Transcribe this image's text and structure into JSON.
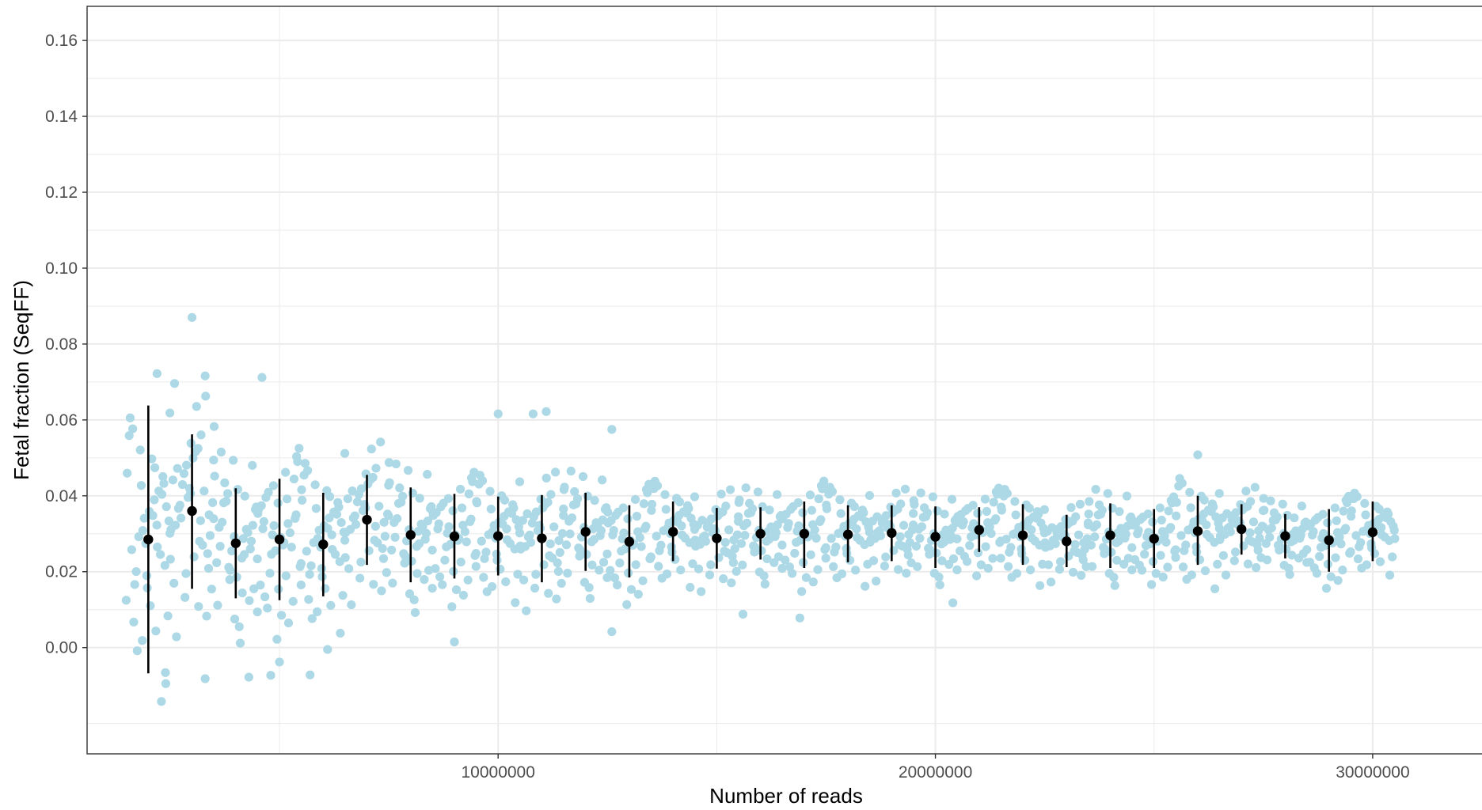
{
  "chart_data": {
    "type": "scatter",
    "title": "",
    "xlabel": "Number of reads",
    "ylabel": "Fetal fraction (SeqFF)",
    "xlim": [
      600000,
      32500000
    ],
    "ylim": [
      -0.028,
      0.169
    ],
    "x_ticks": [
      10000000,
      20000000,
      30000000
    ],
    "x_tick_labels": [
      "10000000",
      "20000000",
      "30000000"
    ],
    "x_minor_ticks": [
      5000000,
      15000000,
      25000000
    ],
    "y_ticks": [
      0.0,
      0.02,
      0.04,
      0.06,
      0.08,
      0.1,
      0.12,
      0.14,
      0.16
    ],
    "y_tick_labels": [
      "0.00",
      "0.02",
      "0.04",
      "0.06",
      "0.08",
      "0.10",
      "0.12",
      "0.14",
      "0.16"
    ],
    "y_minor_ticks": [
      -0.02,
      0.01,
      0.03,
      0.05,
      0.07,
      0.09,
      0.11,
      0.13,
      0.15
    ],
    "grid": true,
    "legend": "none",
    "colors": {
      "points": "#add8e6",
      "summary": "#000000",
      "grid": "#ebebeb",
      "panel_border": "#333333"
    },
    "summary": {
      "x": [
        2000000,
        3000000,
        4000000,
        5000000,
        6000000,
        7000000,
        8000000,
        9000000,
        10000000,
        11000000,
        12000000,
        13000000,
        14000000,
        15000000,
        16000000,
        17000000,
        18000000,
        19000000,
        20000000,
        21000000,
        22000000,
        23000000,
        24000000,
        25000000,
        26000000,
        27000000,
        28000000,
        29000000,
        30000000
      ],
      "mean": [
        0.0285,
        0.036,
        0.0275,
        0.0285,
        0.0272,
        0.0337,
        0.0297,
        0.0293,
        0.0294,
        0.0288,
        0.0305,
        0.0279,
        0.0305,
        0.0288,
        0.03,
        0.03,
        0.0298,
        0.0302,
        0.0292,
        0.031,
        0.0296,
        0.028,
        0.0296,
        0.0287,
        0.0307,
        0.0312,
        0.0294,
        0.0283,
        0.0304
      ],
      "lower": [
        -0.0068,
        0.0155,
        0.013,
        0.0125,
        0.0135,
        0.0218,
        0.0172,
        0.0182,
        0.019,
        0.0172,
        0.0202,
        0.0185,
        0.0228,
        0.0208,
        0.0232,
        0.021,
        0.0225,
        0.0228,
        0.021,
        0.0252,
        0.0218,
        0.0212,
        0.021,
        0.021,
        0.0218,
        0.0245,
        0.0235,
        0.02,
        0.0228
      ],
      "upper": [
        0.0638,
        0.0562,
        0.042,
        0.0445,
        0.0408,
        0.0455,
        0.0422,
        0.0405,
        0.0398,
        0.0402,
        0.0408,
        0.0375,
        0.0385,
        0.0368,
        0.037,
        0.0385,
        0.0375,
        0.0375,
        0.0372,
        0.037,
        0.0378,
        0.035,
        0.038,
        0.0365,
        0.04,
        0.0378,
        0.0352,
        0.0365,
        0.0385
      ]
    },
    "scatter": {
      "x_offsets": [
        -0.38,
        0.31,
        -0.22,
        0.12,
        -0.05,
        0.41,
        -0.33,
        0.27,
        -0.14,
        0.04,
        0.36,
        -0.27,
        0.18,
        -0.42,
        0.09,
        -0.11,
        0.24,
        -0.36,
        0.15,
        -0.02,
        0.33,
        -0.19,
        0.07,
        0.44,
        -0.31,
        0.21,
        -0.08,
        0.39,
        -0.24,
        0.13,
        -0.44,
        0.02,
        0.29,
        -0.16,
        0.34,
        -0.03,
        0.17,
        -0.29,
        0.43,
        -0.12
      ],
      "z": [
        1.52,
        -1.12,
        0.35,
        0.82,
        -0.47,
        0.13,
        -1.63,
        1.05,
        -0.22,
        0.58,
        -0.89,
        1.78,
        -0.06,
        0.41,
        -1.34,
        0.27,
        0.92,
        -0.71,
        -0.15,
        1.31,
        -0.38,
        0.66,
        -1.95,
        0.04,
        0.79,
        -0.53,
        1.18,
        -0.97,
        0.21,
        -0.29,
        0.48,
        -1.21,
        1.62,
        -0.66,
        0.09,
        0.71,
        -0.11,
        -1.48,
        0.31,
        0.97
      ],
      "sd_per_group": [
        0.018,
        0.017,
        0.0135,
        0.0135,
        0.012,
        0.0115,
        0.0105,
        0.0095,
        0.009,
        0.0098,
        0.009,
        0.0085,
        0.0075,
        0.0072,
        0.0068,
        0.0078,
        0.007,
        0.0065,
        0.0065,
        0.0062,
        0.0068,
        0.0055,
        0.0068,
        0.0062,
        0.0078,
        0.0062,
        0.0052,
        0.0065,
        0.0058
      ],
      "group_spread_reads": 1150000,
      "extra_points": [
        {
          "x": 3000000,
          "y": 0.087
        },
        {
          "x": 4600000,
          "y": 0.0712
        },
        {
          "x": 2200000,
          "y": 0.0722
        },
        {
          "x": 3300000,
          "y": 0.0716
        },
        {
          "x": 2600000,
          "y": 0.0696
        },
        {
          "x": 2300000,
          "y": -0.0142
        },
        {
          "x": 2400000,
          "y": -0.0095
        },
        {
          "x": 3300000,
          "y": -0.0082
        },
        {
          "x": 4300000,
          "y": -0.0078
        },
        {
          "x": 4800000,
          "y": -0.0073
        },
        {
          "x": 5700000,
          "y": -0.0072
        },
        {
          "x": 5000000,
          "y": -0.0038
        },
        {
          "x": 6100000,
          "y": -0.0005
        },
        {
          "x": 10800000,
          "y": 0.0616
        },
        {
          "x": 11100000,
          "y": 0.0622
        },
        {
          "x": 12600000,
          "y": 0.0575
        },
        {
          "x": 12600000,
          "y": 0.0042
        },
        {
          "x": 9000000,
          "y": 0.0015
        },
        {
          "x": 10000000,
          "y": 0.0616
        },
        {
          "x": 16900000,
          "y": 0.0078
        },
        {
          "x": 15600000,
          "y": 0.0088
        },
        {
          "x": 26000000,
          "y": 0.0508
        },
        {
          "x": 20400000,
          "y": 0.0118
        }
      ]
    }
  }
}
